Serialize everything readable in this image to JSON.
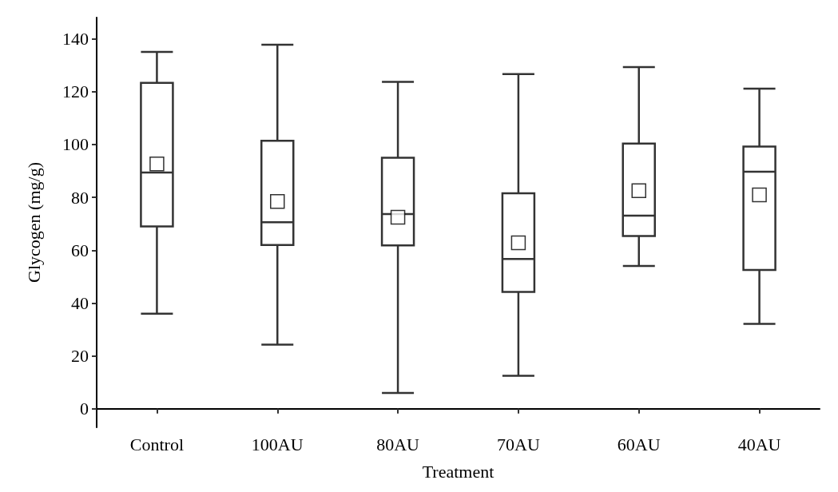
{
  "chart_data": {
    "type": "box",
    "xlabel": "Treatment",
    "ylabel": "Glycogen (mg/g)",
    "categories": [
      "Control",
      "100AU",
      "80AU",
      "70AU",
      "60AU",
      "40AU"
    ],
    "color": "#333333",
    "marker": "square",
    "ylim": [
      -7,
      148
    ],
    "yticks": [
      0,
      20,
      40,
      60,
      80,
      100,
      120,
      140
    ],
    "boxes": [
      {
        "low": 36,
        "q1": 69,
        "median": 89.4,
        "q3": 123.3,
        "high": 135,
        "mean": 92.6
      },
      {
        "low": 24.3,
        "q1": 62,
        "median": 70.6,
        "q3": 101.4,
        "high": 137.7,
        "mean": 78.4
      },
      {
        "low": 6,
        "q1": 61.8,
        "median": 73.7,
        "q3": 95,
        "high": 123.7,
        "mean": 72.5
      },
      {
        "low": 12.5,
        "q1": 44.2,
        "median": 56.7,
        "q3": 81.5,
        "high": 126.6,
        "mean": 62.8
      },
      {
        "low": 54,
        "q1": 65.4,
        "median": 73.1,
        "q3": 100.3,
        "high": 129.3,
        "mean": 82.5
      },
      {
        "low": 32.1,
        "q1": 52.5,
        "median": 89.7,
        "q3": 99.2,
        "high": 121.1,
        "mean": 80.9
      }
    ]
  }
}
